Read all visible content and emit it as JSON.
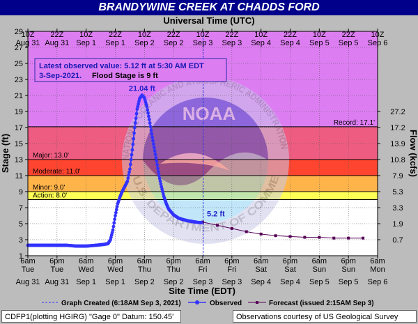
{
  "title": "BRANDYWINE CREEK AT CHADDS FORD",
  "top_axis_title": "Universal Time (UTC)",
  "bottom_axis_title": "Site Time (EDT)",
  "y_left_title": "Stage (ft)",
  "y_right_title": "Flow (kcfs)",
  "info_line1": "Latest observed value: 5.12 ft at 5:30 AM EDT",
  "info_line2_date": "3-Sep-2021.",
  "info_line2_flood": "Flood Stage is 9 ft",
  "peak_label": "21.04 ft",
  "latest_label": "5.2 ft",
  "legend": {
    "created": "Graph Created (6:18AM Sep 3, 2021)",
    "observed": "Observed",
    "forecast": "Forecast (issued 2:15AM Sep 3)"
  },
  "footer_left": "CDFP1(plotting HGIRG) \"Gage 0\" Datum: 150.45'",
  "footer_right": "Observations courtesy of US Geological Survey",
  "watermark": {
    "center": "NOAA",
    "ring_top": "NATIONAL OCEANIC AND ATMOSPHERIC ADMINISTRATION",
    "ring_bottom": "U.S. DEPARTMENT OF COMMERCE"
  },
  "colors": {
    "title_bg": "#00008b",
    "record": "#dd7df2",
    "major": "#ee5c82",
    "moderate": "#ff4530",
    "minor": "#ffb44a",
    "action": "#ffff55",
    "normal": "#ffffff",
    "observed": "#3333ff",
    "forecast": "#550055"
  },
  "chart_data": {
    "type": "line",
    "x_unit": "hours from Aug 31 06:00 EDT",
    "ylim": [
      1,
      29
    ],
    "xlim": [
      0,
      144
    ],
    "y_ticks": [
      1,
      3,
      5,
      7,
      9,
      11,
      13,
      15,
      17,
      19,
      21,
      23,
      25,
      27,
      29
    ],
    "flow_ticks": [
      {
        "stage": 3,
        "label": "0.7"
      },
      {
        "stage": 5,
        "label": "1.9"
      },
      {
        "stage": 7,
        "label": "3.3"
      },
      {
        "stage": 9,
        "label": "5.3"
      },
      {
        "stage": 11,
        "label": "7.9"
      },
      {
        "stage": 13,
        "label": "10.8"
      },
      {
        "stage": 15,
        "label": "13.9"
      },
      {
        "stage": 17,
        "label": "17.2"
      },
      {
        "stage": 19,
        "label": "27.2"
      }
    ],
    "bottom_ticks": [
      {
        "h": 0,
        "t": "6am",
        "d": "Tue",
        "dt": "Aug 31"
      },
      {
        "h": 12,
        "t": "6pm",
        "d": "Tue",
        "dt": "Aug 31"
      },
      {
        "h": 24,
        "t": "6am",
        "d": "Wed",
        "dt": "Sep 1"
      },
      {
        "h": 36,
        "t": "6pm",
        "d": "Wed",
        "dt": "Sep 1"
      },
      {
        "h": 48,
        "t": "6am",
        "d": "Thu",
        "dt": "Sep 2"
      },
      {
        "h": 60,
        "t": "6pm",
        "d": "Thu",
        "dt": "Sep 2"
      },
      {
        "h": 72,
        "t": "6am",
        "d": "Fri",
        "dt": "Sep 3"
      },
      {
        "h": 84,
        "t": "6pm",
        "d": "Fri",
        "dt": "Sep 3"
      },
      {
        "h": 96,
        "t": "6am",
        "d": "Sat",
        "dt": "Sep 4"
      },
      {
        "h": 108,
        "t": "6pm",
        "d": "Sat",
        "dt": "Sep 4"
      },
      {
        "h": 120,
        "t": "6am",
        "d": "Sun",
        "dt": "Sep 5"
      },
      {
        "h": 132,
        "t": "6pm",
        "d": "Sun",
        "dt": "Sep 5"
      },
      {
        "h": 144,
        "t": "6am",
        "d": "Mon",
        "dt": "Sep 6"
      }
    ],
    "top_ticks": [
      {
        "h": 0,
        "t": "10Z",
        "dt": "Aug 31"
      },
      {
        "h": 12,
        "t": "22Z",
        "dt": "Aug 31"
      },
      {
        "h": 24,
        "t": "10Z",
        "dt": "Sep 1"
      },
      {
        "h": 36,
        "t": "22Z",
        "dt": "Sep 1"
      },
      {
        "h": 48,
        "t": "10Z",
        "dt": "Sep 2"
      },
      {
        "h": 60,
        "t": "22Z",
        "dt": "Sep 2"
      },
      {
        "h": 72,
        "t": "10Z",
        "dt": "Sep 3"
      },
      {
        "h": 84,
        "t": "22Z",
        "dt": "Sep 3"
      },
      {
        "h": 96,
        "t": "10Z",
        "dt": "Sep 4"
      },
      {
        "h": 108,
        "t": "22Z",
        "dt": "Sep 4"
      },
      {
        "h": 120,
        "t": "10Z",
        "dt": "Sep 5"
      },
      {
        "h": 132,
        "t": "22Z",
        "dt": "Sep 5"
      },
      {
        "h": 144,
        "t": "10Z",
        "dt": "Sep 6"
      }
    ],
    "flood_categories": [
      {
        "name": "record",
        "from": 17.1,
        "to": 29,
        "label": "Record: 17.1'"
      },
      {
        "name": "major",
        "from": 13,
        "to": 17.1,
        "label": "Major: 13.0'"
      },
      {
        "name": "moderate",
        "from": 11,
        "to": 13,
        "label": "Moderate: 11.0'"
      },
      {
        "name": "minor",
        "from": 9,
        "to": 11,
        "label": "Minor: 9.0'"
      },
      {
        "name": "action",
        "from": 8,
        "to": 9,
        "label": "Action: 8.0'"
      },
      {
        "name": "normal",
        "from": 1,
        "to": 8,
        "label": ""
      }
    ],
    "graph_created_h": 72.3,
    "peak": {
      "h": 47,
      "y": 21.04
    },
    "observed": [
      [
        0,
        2.3
      ],
      [
        4,
        2.3
      ],
      [
        8,
        2.3
      ],
      [
        12,
        2.3
      ],
      [
        16,
        2.3
      ],
      [
        20,
        2.2
      ],
      [
        24,
        2.2
      ],
      [
        28,
        2.3
      ],
      [
        31,
        2.4
      ],
      [
        33,
        2.5
      ],
      [
        34,
        3.0
      ],
      [
        35,
        4.2
      ],
      [
        36,
        6.0
      ],
      [
        37,
        7.5
      ],
      [
        38,
        8.4
      ],
      [
        39,
        9.1
      ],
      [
        40,
        9.7
      ],
      [
        41,
        10.3
      ],
      [
        42,
        11.8
      ],
      [
        43,
        14.2
      ],
      [
        44,
        17.0
      ],
      [
        45,
        19.3
      ],
      [
        46,
        20.6
      ],
      [
        47,
        21.04
      ],
      [
        48,
        20.7
      ],
      [
        49,
        19.6
      ],
      [
        50,
        18.0
      ],
      [
        51,
        16.2
      ],
      [
        52,
        14.5
      ],
      [
        53,
        12.8
      ],
      [
        54,
        11.0
      ],
      [
        55,
        9.6
      ],
      [
        56,
        8.4
      ],
      [
        57,
        7.5
      ],
      [
        58,
        6.8
      ],
      [
        60,
        6.1
      ],
      [
        62,
        5.7
      ],
      [
        64,
        5.5
      ],
      [
        66,
        5.35
      ],
      [
        68,
        5.25
      ],
      [
        70,
        5.15
      ],
      [
        71.5,
        5.12
      ]
    ],
    "forecast": [
      [
        72,
        5.2
      ],
      [
        78,
        4.8
      ],
      [
        84,
        4.4
      ],
      [
        90,
        4.0
      ],
      [
        96,
        3.7
      ],
      [
        102,
        3.5
      ],
      [
        108,
        3.4
      ],
      [
        114,
        3.3
      ],
      [
        120,
        3.3
      ],
      [
        126,
        3.2
      ],
      [
        132,
        3.2
      ],
      [
        138,
        3.2
      ]
    ]
  }
}
